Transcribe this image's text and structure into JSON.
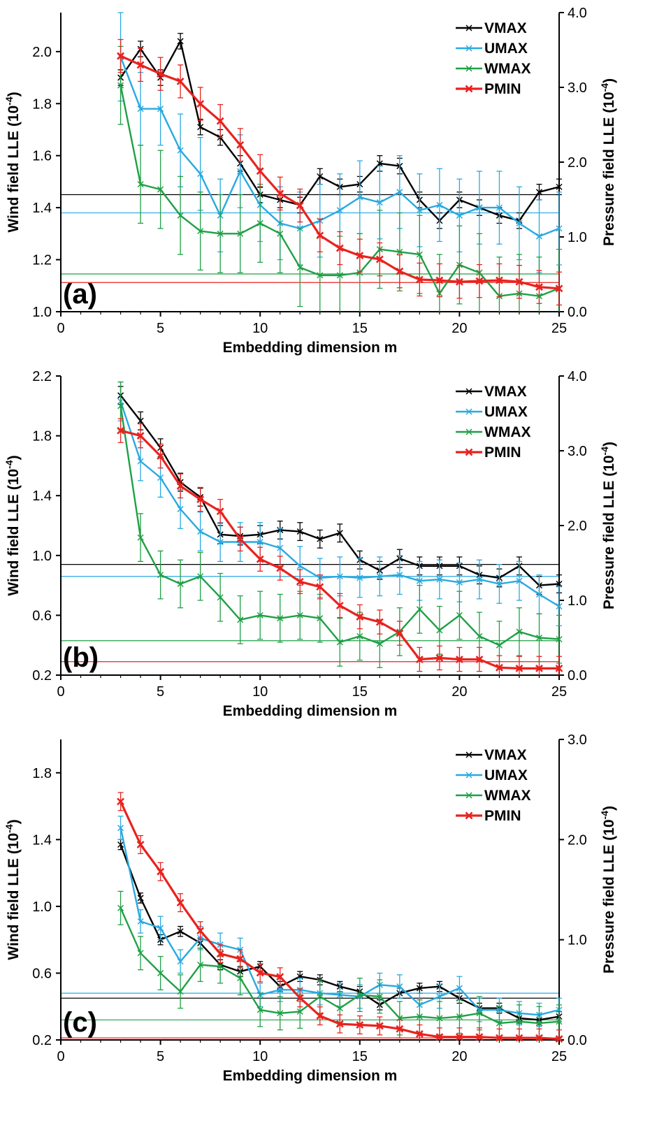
{
  "figure": {
    "colors": {
      "VMAX": "#000000",
      "UMAX": "#29a9e0",
      "WMAX": "#1fa045",
      "PMIN": "#e8231f"
    },
    "xlabel": "Embedding dimension m",
    "ylabel_left": "Wind field LLE (10",
    "ylabel_right": "Pressure field LLE (10",
    "ylabel_exp": "-4",
    "ylabel_close": ")"
  },
  "chart_data": [
    {
      "type": "line",
      "panel_label": "(a)",
      "xlabel": "Embedding dimension m",
      "xlim": [
        0,
        25
      ],
      "x_ticks": [
        0,
        5,
        10,
        15,
        20,
        25
      ],
      "ylim_left": [
        1.0,
        2.15
      ],
      "y_ticks_left": [
        "1.0",
        "1.2",
        "1.4",
        "1.6",
        "1.8",
        "2.0"
      ],
      "ylim_right": [
        0,
        4.0
      ],
      "y_ticks_right": [
        "0.0",
        "1.0",
        "2.0",
        "3.0",
        "4.0"
      ],
      "x": [
        3,
        4,
        5,
        6,
        7,
        8,
        9,
        10,
        11,
        12,
        13,
        14,
        15,
        16,
        17,
        18,
        19,
        20,
        21,
        22,
        23,
        24,
        25
      ],
      "legend": [
        "VMAX",
        "UMAX",
        "WMAX",
        "PMIN"
      ],
      "series": [
        {
          "name": "VMAX",
          "axis": "left",
          "values": [
            1.9,
            2.01,
            1.9,
            2.04,
            1.71,
            1.67,
            1.57,
            1.45,
            1.43,
            1.41,
            1.52,
            1.48,
            1.49,
            1.57,
            1.56,
            1.43,
            1.35,
            1.43,
            1.4,
            1.37,
            1.35,
            1.46,
            1.48
          ],
          "error": [
            0.03,
            0.03,
            0.03,
            0.03,
            0.03,
            0.03,
            0.03,
            0.03,
            0.03,
            0.03,
            0.03,
            0.03,
            0.03,
            0.03,
            0.03,
            0.03,
            0.03,
            0.03,
            0.03,
            0.03,
            0.03,
            0.03,
            0.03
          ],
          "baseline": 1.45
        },
        {
          "name": "UMAX",
          "axis": "left",
          "values": [
            1.98,
            1.78,
            1.78,
            1.62,
            1.53,
            1.37,
            1.54,
            1.41,
            1.34,
            1.32,
            1.35,
            1.39,
            1.44,
            1.42,
            1.46,
            1.39,
            1.41,
            1.37,
            1.4,
            1.4,
            1.34,
            1.29,
            1.32
          ],
          "error": [
            0.17,
            0.14,
            0.14,
            0.14,
            0.14,
            0.14,
            0.14,
            0.14,
            0.14,
            0.14,
            0.14,
            0.14,
            0.14,
            0.14,
            0.14,
            0.14,
            0.14,
            0.14,
            0.14,
            0.14,
            0.14,
            0.14,
            0.14
          ],
          "baseline": 1.38
        },
        {
          "name": "WMAX",
          "axis": "left",
          "values": [
            1.87,
            1.49,
            1.47,
            1.37,
            1.31,
            1.3,
            1.3,
            1.34,
            1.3,
            1.17,
            1.14,
            1.14,
            1.15,
            1.24,
            1.23,
            1.22,
            1.07,
            1.18,
            1.15,
            1.06,
            1.07,
            1.06,
            1.09
          ],
          "error": [
            0.15,
            0.15,
            0.15,
            0.15,
            0.15,
            0.15,
            0.15,
            0.15,
            0.15,
            0.15,
            0.15,
            0.15,
            0.15,
            0.15,
            0.15,
            0.15,
            0.15,
            0.15,
            0.15,
            0.15,
            0.15,
            0.15,
            0.15
          ],
          "baseline": 1.145
        },
        {
          "name": "PMIN",
          "axis": "right",
          "values": [
            3.42,
            3.3,
            3.18,
            3.08,
            2.78,
            2.55,
            2.23,
            1.88,
            1.58,
            1.42,
            1.02,
            0.85,
            0.75,
            0.7,
            0.54,
            0.43,
            0.42,
            0.4,
            0.41,
            0.42,
            0.4,
            0.33,
            0.31
          ],
          "error": [
            0.22,
            0.22,
            0.22,
            0.22,
            0.22,
            0.22,
            0.22,
            0.22,
            0.22,
            0.22,
            0.22,
            0.22,
            0.22,
            0.22,
            0.22,
            0.22,
            0.22,
            0.22,
            0.22,
            0.22,
            0.22,
            0.22,
            0.22
          ],
          "baseline": 0.39
        }
      ]
    },
    {
      "type": "line",
      "panel_label": "(b)",
      "xlabel": "Embedding dimension m",
      "xlim": [
        0,
        25
      ],
      "x_ticks": [
        0,
        5,
        10,
        15,
        20,
        25
      ],
      "ylim_left": [
        0.2,
        2.2
      ],
      "y_ticks_left": [
        "0.2",
        "0.6",
        "1.0",
        "1.4",
        "1.8",
        "2.2"
      ],
      "ylim_right": [
        0,
        4.0
      ],
      "y_ticks_right": [
        "0.0",
        "1.0",
        "2.0",
        "3.0",
        "4.0"
      ],
      "x": [
        3,
        4,
        5,
        6,
        7,
        8,
        9,
        10,
        11,
        12,
        13,
        14,
        15,
        16,
        17,
        18,
        19,
        20,
        21,
        22,
        23,
        24,
        25
      ],
      "legend": [
        "VMAX",
        "UMAX",
        "WMAX",
        "PMIN"
      ],
      "series": [
        {
          "name": "VMAX",
          "axis": "left",
          "values": [
            2.07,
            1.9,
            1.72,
            1.49,
            1.39,
            1.14,
            1.13,
            1.14,
            1.17,
            1.16,
            1.11,
            1.15,
            0.97,
            0.9,
            0.98,
            0.93,
            0.93,
            0.93,
            0.87,
            0.85,
            0.93,
            0.8,
            0.81
          ],
          "error": [
            0.06,
            0.06,
            0.06,
            0.06,
            0.06,
            0.06,
            0.06,
            0.06,
            0.06,
            0.06,
            0.06,
            0.06,
            0.06,
            0.06,
            0.06,
            0.06,
            0.06,
            0.06,
            0.06,
            0.06,
            0.06,
            0.06,
            0.06
          ],
          "baseline": 0.94
        },
        {
          "name": "UMAX",
          "axis": "left",
          "values": [
            2.03,
            1.63,
            1.52,
            1.31,
            1.16,
            1.09,
            1.09,
            1.09,
            1.05,
            0.93,
            0.85,
            0.86,
            0.85,
            0.86,
            0.87,
            0.83,
            0.84,
            0.82,
            0.84,
            0.81,
            0.83,
            0.74,
            0.66
          ],
          "error": [
            0.13,
            0.13,
            0.13,
            0.13,
            0.13,
            0.13,
            0.13,
            0.13,
            0.13,
            0.13,
            0.13,
            0.13,
            0.13,
            0.13,
            0.13,
            0.13,
            0.13,
            0.13,
            0.13,
            0.13,
            0.13,
            0.13,
            0.13
          ],
          "baseline": 0.86
        },
        {
          "name": "WMAX",
          "axis": "left",
          "values": [
            2.0,
            1.12,
            0.87,
            0.81,
            0.86,
            0.72,
            0.57,
            0.6,
            0.58,
            0.6,
            0.58,
            0.42,
            0.46,
            0.41,
            0.49,
            0.64,
            0.5,
            0.6,
            0.46,
            0.4,
            0.49,
            0.45,
            0.44
          ],
          "error": [
            0.16,
            0.16,
            0.16,
            0.16,
            0.16,
            0.16,
            0.16,
            0.16,
            0.16,
            0.16,
            0.16,
            0.16,
            0.16,
            0.16,
            0.16,
            0.16,
            0.16,
            0.16,
            0.16,
            0.16,
            0.16,
            0.16,
            0.16
          ],
          "baseline": 0.43
        },
        {
          "name": "PMIN",
          "axis": "right",
          "values": [
            3.27,
            3.2,
            2.93,
            2.53,
            2.35,
            2.19,
            1.82,
            1.55,
            1.43,
            1.25,
            1.18,
            0.93,
            0.78,
            0.71,
            0.56,
            0.21,
            0.23,
            0.21,
            0.21,
            0.1,
            0.09,
            0.09,
            0.09
          ],
          "error": [
            0.16,
            0.16,
            0.16,
            0.16,
            0.16,
            0.16,
            0.16,
            0.16,
            0.16,
            0.16,
            0.16,
            0.16,
            0.16,
            0.16,
            0.16,
            0.16,
            0.16,
            0.16,
            0.16,
            0.16,
            0.16,
            0.16,
            0.16
          ],
          "baseline": 0.18
        }
      ]
    },
    {
      "type": "line",
      "panel_label": "(c)",
      "xlabel": "Embedding dimension m",
      "xlim": [
        0,
        25
      ],
      "x_ticks": [
        0,
        5,
        10,
        15,
        20,
        25
      ],
      "ylim_left": [
        0.2,
        2.0
      ],
      "y_ticks_left": [
        "0.2",
        "0.6",
        "1.0",
        "1.4",
        "1.8"
      ],
      "ylim_right": [
        0,
        3.0
      ],
      "y_ticks_right": [
        "0.0",
        "1.0",
        "2.0",
        "3.0"
      ],
      "x": [
        3,
        4,
        5,
        6,
        7,
        8,
        9,
        10,
        11,
        12,
        13,
        14,
        15,
        16,
        17,
        18,
        19,
        20,
        21,
        22,
        23,
        24,
        25
      ],
      "legend": [
        "VMAX",
        "UMAX",
        "WMAX",
        "PMIN"
      ],
      "series": [
        {
          "name": "VMAX",
          "axis": "left",
          "values": [
            1.37,
            1.05,
            0.8,
            0.85,
            0.78,
            0.65,
            0.61,
            0.64,
            0.52,
            0.58,
            0.56,
            0.52,
            0.49,
            0.41,
            0.48,
            0.51,
            0.52,
            0.45,
            0.39,
            0.39,
            0.33,
            0.32,
            0.34
          ],
          "error": [
            0.03,
            0.03,
            0.03,
            0.03,
            0.03,
            0.03,
            0.03,
            0.03,
            0.03,
            0.03,
            0.03,
            0.03,
            0.03,
            0.03,
            0.03,
            0.03,
            0.03,
            0.03,
            0.03,
            0.03,
            0.03,
            0.03,
            0.03
          ],
          "baseline": 0.45
        },
        {
          "name": "UMAX",
          "axis": "left",
          "values": [
            1.47,
            0.91,
            0.87,
            0.67,
            0.81,
            0.77,
            0.74,
            0.47,
            0.5,
            0.5,
            0.48,
            0.47,
            0.46,
            0.53,
            0.52,
            0.41,
            0.46,
            0.51,
            0.38,
            0.38,
            0.36,
            0.35,
            0.38
          ],
          "error": [
            0.07,
            0.07,
            0.07,
            0.07,
            0.07,
            0.07,
            0.07,
            0.07,
            0.07,
            0.07,
            0.07,
            0.07,
            0.07,
            0.07,
            0.07,
            0.07,
            0.07,
            0.07,
            0.07,
            0.07,
            0.07,
            0.07,
            0.07
          ],
          "baseline": 0.48
        },
        {
          "name": "WMAX",
          "axis": "left",
          "values": [
            0.99,
            0.72,
            0.6,
            0.49,
            0.65,
            0.64,
            0.57,
            0.38,
            0.36,
            0.37,
            0.46,
            0.39,
            0.47,
            0.46,
            0.33,
            0.34,
            0.33,
            0.34,
            0.36,
            0.3,
            0.31,
            0.3,
            0.31
          ],
          "error": [
            0.1,
            0.1,
            0.1,
            0.1,
            0.1,
            0.1,
            0.1,
            0.1,
            0.1,
            0.1,
            0.1,
            0.1,
            0.1,
            0.1,
            0.1,
            0.1,
            0.1,
            0.1,
            0.1,
            0.1,
            0.1,
            0.1,
            0.1
          ],
          "baseline": 0.32
        },
        {
          "name": "PMIN",
          "axis": "right",
          "values": [
            2.38,
            1.95,
            1.68,
            1.37,
            1.09,
            0.86,
            0.81,
            0.67,
            0.63,
            0.42,
            0.24,
            0.16,
            0.15,
            0.14,
            0.11,
            0.06,
            0.03,
            0.03,
            0.03,
            0.02,
            0.02,
            0.02,
            0.01
          ],
          "error": [
            0.09,
            0.09,
            0.09,
            0.09,
            0.09,
            0.09,
            0.09,
            0.09,
            0.09,
            0.09,
            0.09,
            0.09,
            0.09,
            0.09,
            0.09,
            0.09,
            0.09,
            0.09,
            0.09,
            0.09,
            0.09,
            0.09,
            0.09
          ],
          "baseline": 0.02
        }
      ]
    }
  ]
}
